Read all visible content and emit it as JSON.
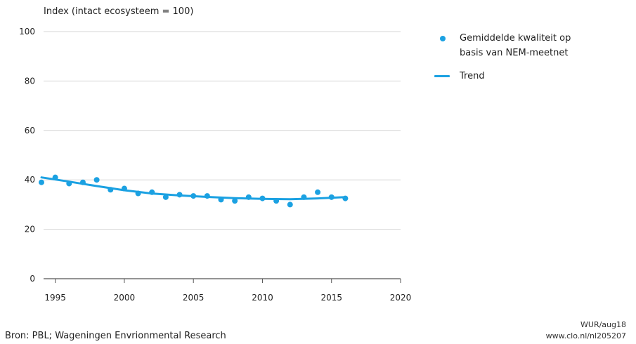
{
  "chart_data": {
    "type": "scatter",
    "ylabel": "Index (intact ecosysteem = 100)",
    "xlim": [
      1994,
      2020
    ],
    "ylim": [
      0,
      100
    ],
    "x_ticks": [
      "1995",
      "2000",
      "2005",
      "2010",
      "2015",
      "2020"
    ],
    "y_ticks": [
      "100",
      "80",
      "60",
      "40",
      "20",
      "0"
    ],
    "grid": true,
    "legend_position": "right",
    "series": [
      {
        "name": "Gemiddelde kwaliteit op basis van NEM-meetnet",
        "type": "scatter",
        "color": "#1ba1e2",
        "x": [
          1994,
          1995,
          1996,
          1997,
          1998,
          1999,
          2000,
          2001,
          2002,
          2003,
          2004,
          2005,
          2006,
          2007,
          2008,
          2009,
          2010,
          2011,
          2012,
          2013,
          2014,
          2015,
          2016
        ],
        "y": [
          39,
          41,
          38.5,
          39,
          40,
          36,
          36.5,
          34.5,
          35,
          33,
          34,
          33.5,
          33.5,
          32,
          31.5,
          33,
          32.5,
          31.5,
          30,
          33,
          35,
          33,
          32.5
        ]
      },
      {
        "name": "Trend",
        "type": "line",
        "color": "#1ba1e2",
        "x": [
          1994,
          1996,
          1998,
          2000,
          2002,
          2004,
          2006,
          2008,
          2010,
          2012,
          2014,
          2016
        ],
        "y": [
          41,
          39.3,
          37.5,
          35.8,
          34.5,
          33.7,
          33.1,
          32.6,
          32.3,
          32.2,
          32.5,
          33
        ]
      }
    ]
  },
  "legend": {
    "items": [
      {
        "label_line1": "Gemiddelde kwaliteit op",
        "label_line2": "basis van NEM-meetnet"
      },
      {
        "label_line1": "Trend"
      }
    ]
  },
  "footer": {
    "source": "Bron: PBL; Wageningen Envrionmental Research",
    "credit_line1": "WUR/aug18",
    "credit_line2": "www.clo.nl/nl205207"
  }
}
